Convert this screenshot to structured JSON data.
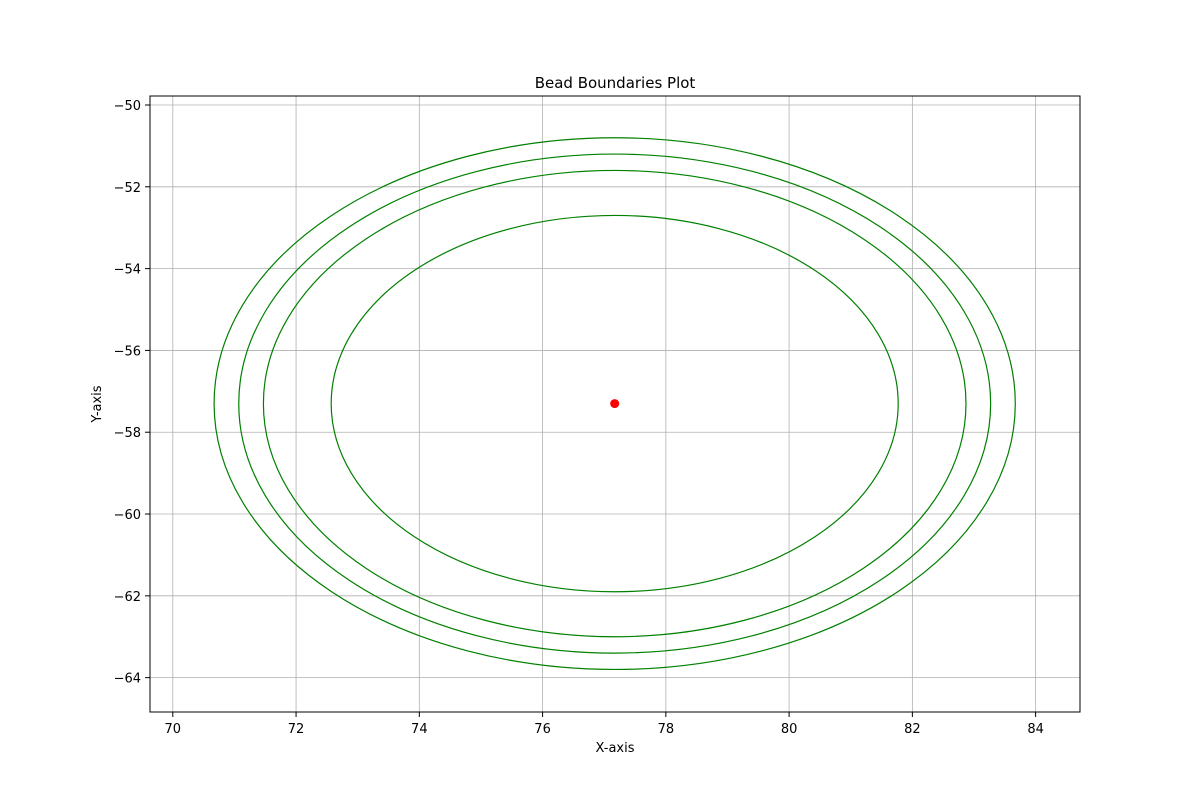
{
  "chart_data": {
    "type": "scatter",
    "title": "Bead Boundaries Plot",
    "xlabel": "X-axis",
    "ylabel": "Y-axis",
    "xlim": [
      69.63,
      84.72
    ],
    "ylim": [
      -64.84,
      -49.78
    ],
    "xticks": [
      70,
      72,
      74,
      76,
      78,
      80,
      82,
      84
    ],
    "yticks": [
      -64,
      -62,
      -60,
      -58,
      -56,
      -54,
      -52,
      -50
    ],
    "x_tick_labels": [
      "70",
      "72",
      "74",
      "76",
      "78",
      "80",
      "82",
      "84"
    ],
    "y_tick_labels": [
      "−64",
      "−62",
      "−60",
      "−58",
      "−56",
      "−54",
      "−52",
      "−50"
    ],
    "grid": true,
    "center": {
      "x": 77.17,
      "y": -57.3,
      "color": "#ff0000"
    },
    "ellipses": [
      {
        "cx": 77.17,
        "cy": -57.3,
        "rx": 4.6,
        "ry": 4.6,
        "color": "#008000"
      },
      {
        "cx": 77.17,
        "cy": -57.3,
        "rx": 5.7,
        "ry": 5.7,
        "color": "#008000"
      },
      {
        "cx": 77.17,
        "cy": -57.3,
        "rx": 6.1,
        "ry": 6.1,
        "color": "#008000"
      },
      {
        "cx": 77.17,
        "cy": -57.3,
        "rx": 6.5,
        "ry": 6.5,
        "color": "#008000"
      }
    ]
  }
}
